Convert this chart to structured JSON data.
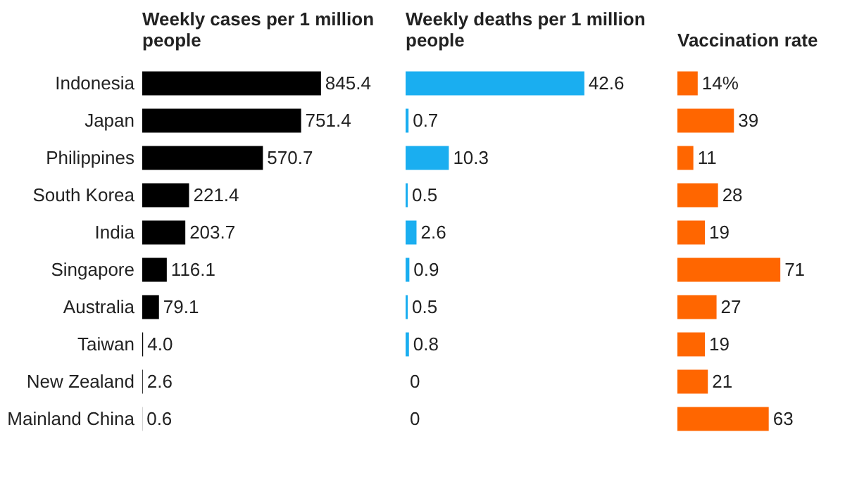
{
  "chart_data": [
    {
      "type": "bar",
      "orientation": "horizontal",
      "title": "Weekly cases per 1 million people",
      "categories": [
        "Indonesia",
        "Japan",
        "Philippines",
        "South Korea",
        "India",
        "Singapore",
        "Australia",
        "Taiwan",
        "New Zealand",
        "Mainland China"
      ],
      "values": [
        845.4,
        751.4,
        570.7,
        221.4,
        203.7,
        116.1,
        79.1,
        4.0,
        2.6,
        0.6
      ],
      "value_labels": [
        "845.4",
        "751.4",
        "570.7",
        "221.4",
        "203.7",
        "116.1",
        "79.1",
        "4.0",
        "2.6",
        "0.6"
      ],
      "color": "#000000",
      "tick_labels": "y",
      "grid": false
    },
    {
      "type": "bar",
      "orientation": "horizontal",
      "title": "Weekly deaths per 1 million people",
      "values": [
        42.6,
        0.7,
        10.3,
        0.5,
        2.6,
        0.9,
        0.5,
        0.8,
        0,
        0
      ],
      "value_labels": [
        "42.6",
        "0.7",
        "10.3",
        "0.5",
        "2.6",
        "0.9",
        "0.5",
        "0.8",
        "0",
        "0"
      ],
      "color": "#1aaef0",
      "tick_labels": false,
      "grid": false
    },
    {
      "type": "bar",
      "orientation": "horizontal",
      "title": "Vaccination rate",
      "values": [
        14,
        39,
        11,
        28,
        19,
        71,
        27,
        19,
        21,
        63
      ],
      "value_labels": [
        "14%",
        "39",
        "11",
        "28",
        "19",
        "71",
        "27",
        "19",
        "21",
        "63"
      ],
      "color": "#ff6600",
      "tick_labels": false,
      "grid": false
    }
  ]
}
